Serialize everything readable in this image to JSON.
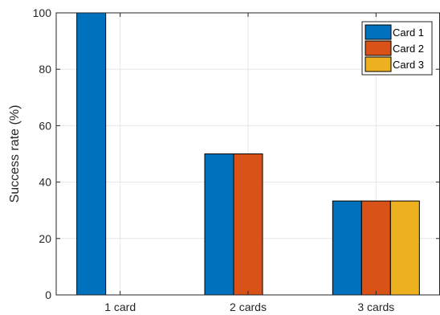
{
  "chart_data": {
    "type": "bar",
    "categories": [
      "1 card",
      "2 cards",
      "3 cards"
    ],
    "series": [
      {
        "name": "Card 1",
        "values": [
          100,
          50,
          33.3
        ],
        "color": "#0072BD"
      },
      {
        "name": "Card 2",
        "values": [
          null,
          50,
          33.3
        ],
        "color": "#D95319"
      },
      {
        "name": "Card 3",
        "values": [
          null,
          null,
          33.3
        ],
        "color": "#EDB120"
      }
    ],
    "title": "",
    "xlabel": "",
    "ylabel": "Success rate (%)",
    "ylim": [
      0,
      100
    ],
    "yticks": [
      0,
      20,
      40,
      60,
      80,
      100
    ],
    "grid": true,
    "legend": "top-right"
  }
}
